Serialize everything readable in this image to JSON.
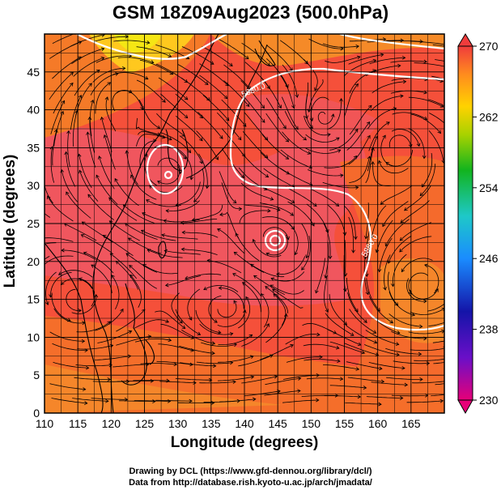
{
  "title": "GSM 18Z09Aug2023 (500.0hPa)",
  "xlabel": "Longitude (degrees)",
  "ylabel": "Latitude  (degrees)",
  "credits": {
    "line1": "Drawing by DCL (https://www.gfd-dennou.org/library/dcl/)",
    "line2": "Data from http://database.rish.kyoto-u.ac.jp/arch/jmadata/"
  },
  "chart_data": {
    "type": "heatmap",
    "x_ticks": [
      110,
      115,
      120,
      125,
      130,
      135,
      140,
      145,
      150,
      155,
      160,
      165
    ],
    "y_ticks": [
      0,
      5,
      10,
      15,
      20,
      25,
      30,
      35,
      40,
      45
    ],
    "xlim": [
      110,
      170
    ],
    "ylim": [
      0,
      50
    ],
    "colorbar": {
      "ticks": [
        270,
        262,
        254,
        246,
        238,
        230
      ],
      "range": [
        230,
        270
      ]
    },
    "contour_labels": [
      "5880.0",
      "5880.0"
    ],
    "grid": true
  },
  "colors": {
    "field_base": "#f5503a",
    "contour": "#ffffff",
    "streamline": "#000000"
  }
}
